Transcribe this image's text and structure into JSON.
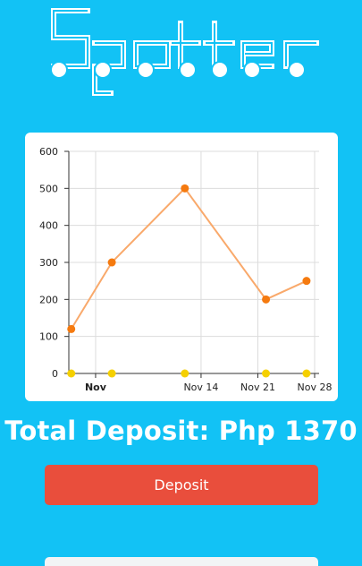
{
  "app": {
    "logo_text": "Spotter"
  },
  "chart_data": {
    "type": "line",
    "x_ticks": [
      "Nov",
      "Nov 14",
      "Nov 21",
      "Nov 28"
    ],
    "x_tick_bold": [
      true,
      false,
      false,
      false
    ],
    "y_ticks": [
      0,
      100,
      200,
      300,
      400,
      500,
      600
    ],
    "ylim": [
      0,
      600
    ],
    "grid": true,
    "series": [
      {
        "x": [
          "Oct 29",
          "Nov 3",
          "Nov 12",
          "Nov 22",
          "Nov 27"
        ],
        "values": [
          120,
          300,
          500,
          200,
          250
        ],
        "color": "#f57a0f",
        "line_color": "#f9a96b"
      },
      {
        "x": [
          "Oct 29",
          "Nov 3",
          "Nov 12",
          "Nov 22",
          "Nov 27"
        ],
        "values": [
          0,
          0,
          0,
          0,
          0
        ],
        "color": "#f5d000"
      }
    ]
  },
  "summary": {
    "total_label": "Total Deposit: Php 1370"
  },
  "actions": {
    "deposit_label": "Deposit"
  },
  "colors": {
    "background": "#12c2f5",
    "button": "#e94e3c",
    "card": "#ffffff"
  }
}
